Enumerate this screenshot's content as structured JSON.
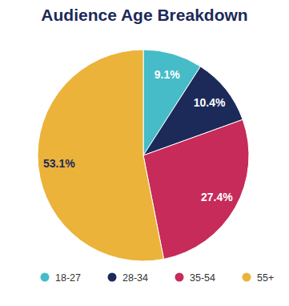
{
  "chart_data": {
    "type": "pie",
    "title": "Audience Age Breakdown",
    "categories": [
      "18-27",
      "28-34",
      "35-54",
      "55+"
    ],
    "values": [
      9.1,
      10.4,
      27.4,
      53.1
    ],
    "value_labels": [
      "9.1%",
      "10.4%",
      "27.4%",
      "53.1%"
    ],
    "colors": [
      "#45bcc8",
      "#1c2a5a",
      "#c62b5a",
      "#ebb33a"
    ],
    "data_labels": true,
    "legend": "bottom"
  }
}
